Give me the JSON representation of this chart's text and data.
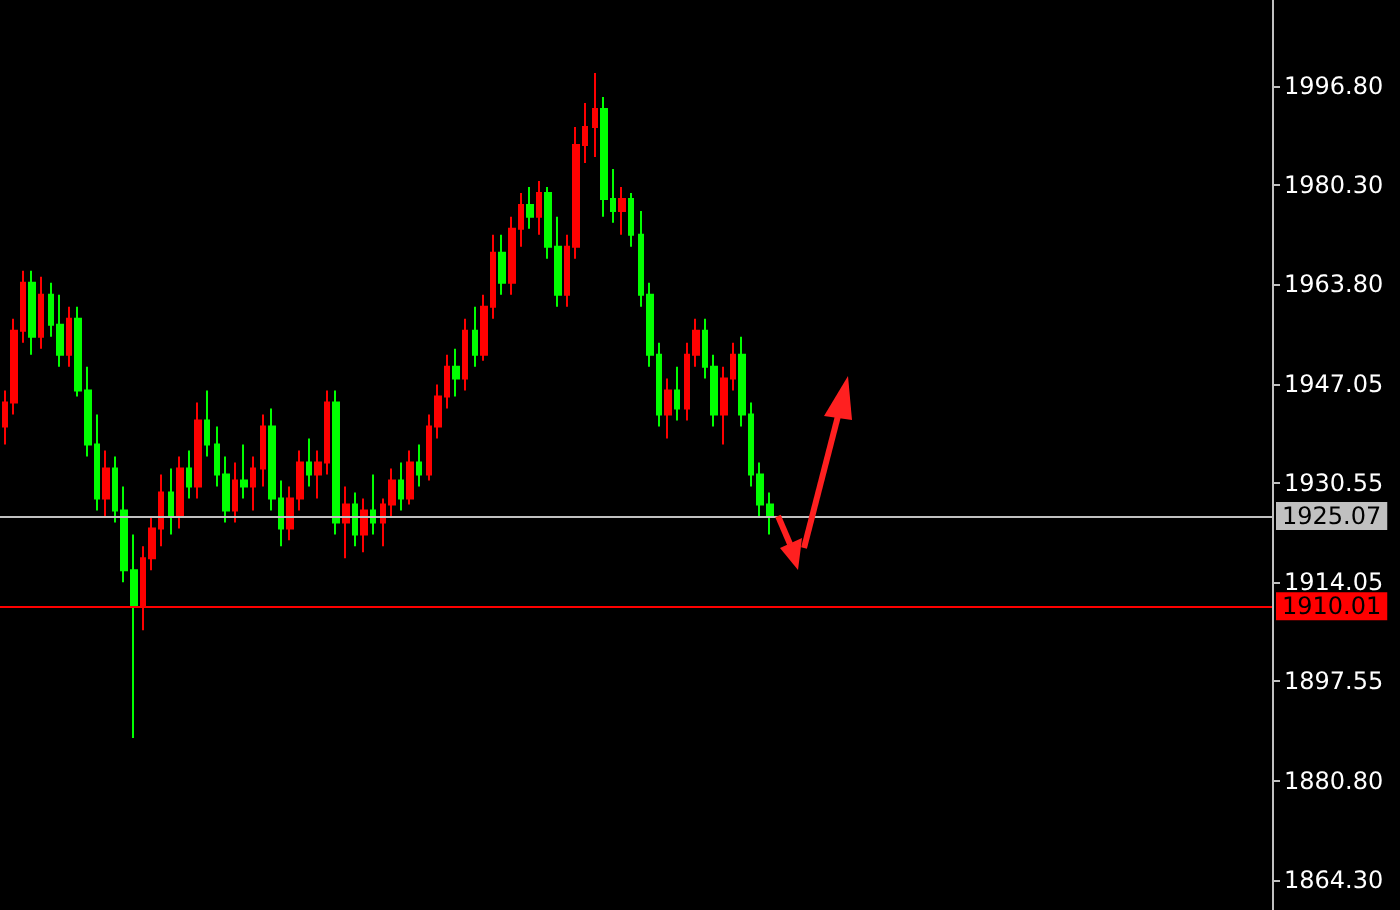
{
  "chart_data": {
    "type": "candlestick",
    "categories": [
      null,
      null,
      null,
      null,
      null,
      null,
      null,
      null,
      null,
      null,
      null,
      null,
      null,
      null,
      null,
      null,
      null,
      null,
      null,
      null,
      null,
      null,
      null,
      null,
      null,
      null,
      null,
      null,
      null,
      null,
      null,
      null,
      null,
      null,
      null,
      null,
      null,
      null,
      null,
      null,
      null,
      null,
      null,
      null,
      null,
      null,
      null,
      null,
      null,
      null,
      null,
      null,
      null,
      null,
      null,
      null,
      null,
      null,
      null,
      null,
      null,
      null,
      null,
      null,
      null,
      null,
      null,
      null,
      null,
      null,
      null,
      null,
      null,
      null,
      null,
      null,
      null,
      null,
      null,
      null,
      null,
      null,
      null,
      null,
      null,
      null,
      null,
      null,
      null,
      null,
      null,
      null,
      null,
      null,
      null,
      null,
      null,
      null,
      null,
      null,
      null,
      null,
      null,
      null,
      null,
      null,
      null,
      null,
      null,
      null,
      null,
      null,
      null,
      null,
      null,
      null,
      null,
      null,
      null,
      null,
      null,
      null,
      null,
      null,
      null,
      null,
      null,
      null,
      null,
      null,
      null,
      null,
      null,
      null,
      null,
      null,
      null,
      null
    ],
    "ohlc": [
      [
        1940,
        1946,
        1937,
        1944
      ],
      [
        1944,
        1958,
        1942,
        1956
      ],
      [
        1956,
        1966,
        1954,
        1964
      ],
      [
        1964,
        1966,
        1952,
        1955
      ],
      [
        1955,
        1965,
        1953,
        1962
      ],
      [
        1962,
        1964,
        1955,
        1957
      ],
      [
        1957,
        1962,
        1950,
        1952
      ],
      [
        1952,
        1960,
        1950,
        1958
      ],
      [
        1958,
        1960,
        1945,
        1946
      ],
      [
        1946,
        1950,
        1935,
        1937
      ],
      [
        1937,
        1942,
        1926,
        1928
      ],
      [
        1928,
        1936,
        1925,
        1933
      ],
      [
        1933,
        1935,
        1924,
        1926
      ],
      [
        1926,
        1930,
        1914,
        1916
      ],
      [
        1916,
        1922,
        1888,
        1910
      ],
      [
        1910,
        1920,
        1906,
        1918
      ],
      [
        1918,
        1925,
        1916,
        1923
      ],
      [
        1923,
        1932,
        1920,
        1929
      ],
      [
        1929,
        1933,
        1922,
        1925
      ],
      [
        1925,
        1935,
        1923,
        1933
      ],
      [
        1933,
        1936,
        1928,
        1930
      ],
      [
        1930,
        1944,
        1928,
        1941
      ],
      [
        1941,
        1946,
        1935,
        1937
      ],
      [
        1937,
        1940,
        1930,
        1932
      ],
      [
        1932,
        1935,
        1924,
        1926
      ],
      [
        1926,
        1934,
        1924,
        1931
      ],
      [
        1931,
        1937,
        1928,
        1930
      ],
      [
        1930,
        1935,
        1926,
        1933
      ],
      [
        1933,
        1942,
        1930,
        1940
      ],
      [
        1940,
        1943,
        1926,
        1928
      ],
      [
        1928,
        1931,
        1920,
        1923
      ],
      [
        1923,
        1930,
        1921,
        1928
      ],
      [
        1928,
        1936,
        1926,
        1934
      ],
      [
        1934,
        1938,
        1930,
        1932
      ],
      [
        1932,
        1936,
        1928,
        1934
      ],
      [
        1934,
        1946,
        1932,
        1944
      ],
      [
        1944,
        1946,
        1922,
        1924
      ],
      [
        1924,
        1930,
        1918,
        1927
      ],
      [
        1927,
        1929,
        1920,
        1922
      ],
      [
        1922,
        1928,
        1919,
        1926
      ],
      [
        1926,
        1932,
        1922,
        1924
      ],
      [
        1924,
        1928,
        1920,
        1927
      ],
      [
        1927,
        1933,
        1925,
        1931
      ],
      [
        1931,
        1934,
        1926,
        1928
      ],
      [
        1928,
        1936,
        1927,
        1934
      ],
      [
        1934,
        1937,
        1930,
        1932
      ],
      [
        1932,
        1942,
        1931,
        1940
      ],
      [
        1940,
        1947,
        1938,
        1945
      ],
      [
        1945,
        1952,
        1943,
        1950
      ],
      [
        1950,
        1953,
        1945,
        1948
      ],
      [
        1948,
        1958,
        1946,
        1956
      ],
      [
        1956,
        1960,
        1950,
        1952
      ],
      [
        1952,
        1962,
        1951,
        1960
      ],
      [
        1960,
        1972,
        1958,
        1969
      ],
      [
        1969,
        1972,
        1962,
        1964
      ],
      [
        1964,
        1975,
        1962,
        1973
      ],
      [
        1973,
        1979,
        1970,
        1977
      ],
      [
        1977,
        1980,
        1973,
        1975
      ],
      [
        1975,
        1981,
        1972,
        1979
      ],
      [
        1979,
        1980,
        1968,
        1970
      ],
      [
        1970,
        1975,
        1960,
        1962
      ],
      [
        1962,
        1972,
        1960,
        1970
      ],
      [
        1970,
        1990,
        1968,
        1987
      ],
      [
        1987,
        1994,
        1984,
        1990
      ],
      [
        1990,
        1999,
        1985,
        1993
      ],
      [
        1993,
        1995,
        1975,
        1978
      ],
      [
        1978,
        1983,
        1974,
        1976
      ],
      [
        1976,
        1980,
        1972,
        1978
      ],
      [
        1978,
        1979,
        1970,
        1972
      ],
      [
        1972,
        1976,
        1960,
        1962
      ],
      [
        1962,
        1964,
        1950,
        1952
      ],
      [
        1952,
        1954,
        1940,
        1942
      ],
      [
        1942,
        1948,
        1938,
        1946
      ],
      [
        1946,
        1950,
        1941,
        1943
      ],
      [
        1943,
        1954,
        1941,
        1952
      ],
      [
        1952,
        1958,
        1950,
        1956
      ],
      [
        1956,
        1958,
        1948,
        1950
      ],
      [
        1950,
        1952,
        1940,
        1942
      ],
      [
        1942,
        1950,
        1937,
        1948
      ],
      [
        1948,
        1954,
        1946,
        1952
      ],
      [
        1952,
        1955,
        1940,
        1942
      ],
      [
        1942,
        1944,
        1930,
        1932
      ],
      [
        1932,
        1934,
        1925,
        1927
      ],
      [
        1927,
        1929,
        1922,
        1925
      ],
      null,
      null,
      null,
      null,
      null,
      null,
      null,
      null,
      null,
      null,
      null,
      null,
      null,
      null,
      null,
      null,
      null,
      null,
      null,
      null,
      null,
      null,
      null,
      null,
      null,
      null,
      null,
      null,
      null,
      null,
      null,
      null,
      null,
      null,
      null,
      null,
      null,
      null,
      null,
      null,
      null,
      null,
      null,
      null,
      null,
      null,
      null,
      null,
      null,
      null,
      null,
      null,
      null,
      null
    ],
    "colors": [
      "#ff0000",
      "#ff0000",
      "#ff0000",
      "#00ff00",
      "#ff0000",
      "#00ff00",
      "#00ff00",
      "#ff0000",
      "#00ff00",
      "#00ff00",
      "#00ff00",
      "#ff0000",
      "#00ff00",
      "#00ff00",
      "#00ff00",
      "#ff0000",
      "#ff0000",
      "#ff0000",
      "#00ff00",
      "#ff0000",
      "#00ff00",
      "#ff0000",
      "#00ff00",
      "#00ff00",
      "#00ff00",
      "#ff0000",
      "#00ff00",
      "#ff0000",
      "#ff0000",
      "#00ff00",
      "#00ff00",
      "#ff0000",
      "#ff0000",
      "#00ff00",
      "#ff0000",
      "#ff0000",
      "#00ff00",
      "#ff0000",
      "#00ff00",
      "#ff0000",
      "#00ff00",
      "#ff0000",
      "#ff0000",
      "#00ff00",
      "#ff0000",
      "#00ff00",
      "#ff0000",
      "#ff0000",
      "#ff0000",
      "#00ff00",
      "#ff0000",
      "#00ff00",
      "#ff0000",
      "#ff0000",
      "#00ff00",
      "#ff0000",
      "#ff0000",
      "#00ff00",
      "#ff0000",
      "#00ff00",
      "#00ff00",
      "#ff0000",
      "#ff0000",
      "#ff0000",
      "#ff0000",
      "#00ff00",
      "#00ff00",
      "#ff0000",
      "#00ff00",
      "#00ff00",
      "#00ff00",
      "#00ff00",
      "#ff0000",
      "#00ff00",
      "#ff0000",
      "#ff0000",
      "#00ff00",
      "#00ff00",
      "#ff0000",
      "#ff0000",
      "#00ff00",
      "#00ff00",
      "#00ff00",
      "#00ff00",
      null,
      null,
      null,
      null,
      null,
      null,
      null,
      null,
      null,
      null,
      null,
      null,
      null,
      null,
      null,
      null,
      null,
      null,
      null,
      null,
      null,
      null,
      null,
      null,
      null,
      null,
      null,
      null,
      null,
      null,
      null,
      null,
      null,
      null,
      null,
      null,
      null,
      null,
      null,
      null,
      null,
      null,
      null,
      null,
      null,
      null,
      null,
      null,
      null,
      null,
      null,
      null,
      null,
      null
    ],
    "ylim": [
      1859.3,
      2011.2
    ],
    "yticks": [
      {
        "value": 1864.3,
        "label": "1864.30"
      },
      {
        "value": 1880.8,
        "label": "1880.80"
      },
      {
        "value": 1897.55,
        "label": "1897.55"
      },
      {
        "value": 1914.05,
        "label": "1914.05"
      },
      {
        "value": 1930.55,
        "label": "1930.55"
      },
      {
        "value": 1947.05,
        "label": "1947.05"
      },
      {
        "value": 1963.8,
        "label": "1963.80"
      },
      {
        "value": 1980.3,
        "label": "1980.30"
      },
      {
        "value": 1996.8,
        "label": "1996.80"
      }
    ],
    "ref_lines": [
      {
        "axis": "y",
        "value": 1925.07,
        "label": "1925.07",
        "color": "#c0c0c0"
      },
      {
        "axis": "y",
        "value": 1910.01,
        "label": "1910.01",
        "color": "#ff0000"
      }
    ],
    "grid": false,
    "tick_labels": "y"
  }
}
